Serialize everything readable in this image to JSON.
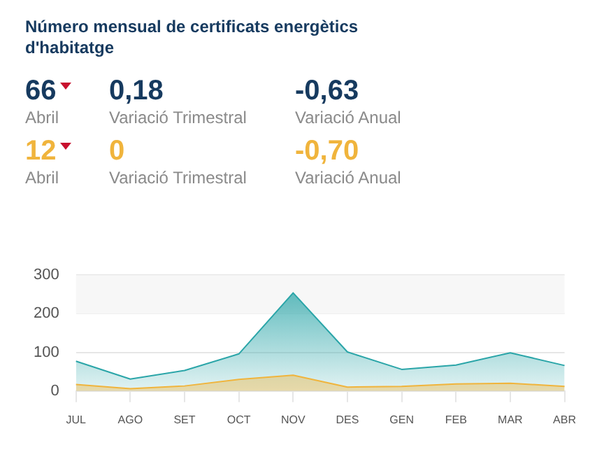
{
  "chart_data": [
    {
      "type": "other",
      "title": "Número mensual de certificats energètics d'habitatge",
      "colors": [
        "#163a5f",
        "#f0b43c"
      ],
      "annotations": [
        "66",
        "Abril",
        "0,18",
        "Variació Trimestral",
        "-0,63",
        "Variació Anual",
        "12",
        "Abril",
        "0",
        "Variació Trimestral",
        "-0,70",
        "Variació Anual"
      ]
    },
    {
      "type": "area",
      "categories": [
        "JUL",
        "AGO",
        "SET",
        "OCT",
        "NOV",
        "DES",
        "GEN",
        "FEB",
        "MAR",
        "ABR"
      ],
      "series": [
        {
          "color": "#2aa5a8",
          "values": [
            77,
            31,
            53,
            96,
            254,
            101,
            56,
            67,
            99,
            66
          ]
        },
        {
          "color": "#f0b43c",
          "values": [
            17,
            6,
            13,
            30,
            41,
            10,
            12,
            18,
            20,
            12
          ]
        }
      ],
      "ylim": [
        0,
        300
      ],
      "yticks": [
        0,
        100,
        200,
        300
      ],
      "grid": "y",
      "legend": false,
      "bands": [
        {
          "axis": "y",
          "from": 200,
          "to": 300,
          "color": "#f7f7f7"
        }
      ]
    }
  ]
}
